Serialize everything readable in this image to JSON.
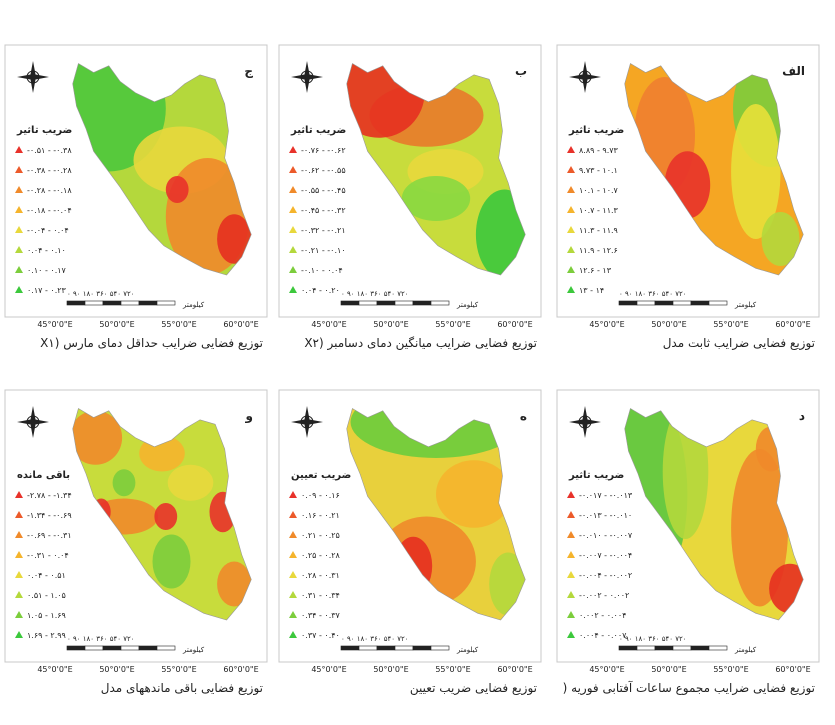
{
  "panels": [
    {
      "letter": "الف",
      "legend_title": "ضریب تاثیر",
      "legend_items": [
        "۸.۸۹ - ۹.۷۳",
        "۹.۷۳ - ۱۰.۱",
        "۱۰.۱ - ۱۰.۷",
        "۱۰.۷ - ۱۱.۳",
        "۱۱.۳ - ۱۱.۹",
        "۱۱.۹ - ۱۲.۶",
        "۱۲.۶ - ۱۳",
        "۱۳ - ۱۴"
      ],
      "caption": "توزیع فضایی ضرایب ثابت مدل",
      "longitudes": [
        "45°0'0\"E",
        "50°0'0\"E",
        "55°0'0\"E",
        "60°0'0\"E"
      ],
      "scale_labels": "۰ ۹۰ ۱۸۰ ۳۶۰ ۵۴۰ ۷۲۰",
      "scale_unit": "کیلومتر"
    },
    {
      "letter": "ب",
      "legend_title": "ضریب تاثیر",
      "legend_items": [
        "-۰.۷۶ - -۰.۶۲",
        "-۰.۶۲ - -۰.۵۵",
        "-۰.۵۵ - -۰.۴۵",
        "-۰.۴۵ - -۰.۳۲",
        "-۰.۳۲ - -۰.۲۱",
        "-۰.۲۱ - -۰.۱۰",
        "-۰.۱۰ - ۰.۰۴",
        "۰.۰۴ - ۰.۲۰"
      ],
      "caption": "توزیع فضایی ضرایب میانگین دمای دسامبر (X۲",
      "longitudes": [
        "45°0'0\"E",
        "50°0'0\"E",
        "55°0'0\"E",
        "60°0'0\"E"
      ],
      "scale_labels": "۰ ۹۰ ۱۸۰ ۳۶۰ ۵۴۰ ۷۲۰",
      "scale_unit": "کیلومتر"
    },
    {
      "letter": "ج",
      "legend_title": "ضریب تاثیر",
      "legend_items": [
        "-۰.۵۱ - -۰.۳۸",
        "-۰.۳۸ - -۰.۲۸",
        "-۰.۲۸ - -۰.۱۸",
        "-۰.۱۸ - -۰.۰۴",
        "-۰.۰۴ - ۰.۰۴",
        "۰.۰۴ - ۰.۱۰",
        "۰.۱۰ - ۰.۱۷",
        "۰.۱۷ - ۰.۲۳"
      ],
      "caption": "توزیع فضایی ضرایب حداقل دمای مارس (X۱",
      "longitudes": [
        "45°0'0\"E",
        "50°0'0\"E",
        "55°0'0\"E",
        "60°0'0\"E"
      ],
      "scale_labels": "۰ ۹۰ ۱۸۰ ۳۶۰ ۵۴۰ ۷۲۰",
      "scale_unit": "کیلومتر"
    },
    {
      "letter": "د",
      "legend_title": "ضریب تاثیر",
      "legend_items": [
        "-۰.۰۱۷ - -۰.۰۱۳",
        "-۰.۰۱۳ - -۰.۰۱۰",
        "-۰.۰۱۰ - -۰.۰۰۷",
        "-۰.۰۰۷ - -۰.۰۰۴",
        "-۰.۰۰۴ - -۰.۰۰۲",
        "-۰.۰۰۲ - ۰.۰۰۲",
        "۰.۰۰۲ - ۰.۰۰۴",
        "۰.۰۰۴ - ۰.۰۰۷"
      ],
      "caption": "توزیع فضایی ضرایب مجموع ساعات آفتابی فوریه (",
      "longitudes": [
        "45°0'0\"E",
        "50°0'0\"E",
        "55°0'0\"E",
        "60°0'0\"E"
      ],
      "scale_labels": "۰ ۹۰ ۱۸۰ ۳۶۰ ۵۴۰ ۷۲۰",
      "scale_unit": "کیلومتر"
    },
    {
      "letter": "ه",
      "legend_title": "ضریب تعیین",
      "legend_items": [
        "۰.۰۹ - ۰.۱۶",
        "۰.۱۶ - ۰.۲۱",
        "۰.۲۱ - ۰.۲۵",
        "۰.۲۵ - ۰.۲۸",
        "۰.۲۸ - ۰.۳۱",
        "۰.۳۱ - ۰.۳۴",
        "۰.۳۴ - ۰.۳۷",
        "۰.۳۷ - ۰.۴۰"
      ],
      "caption": "توزیع فضایی ضریب تعیین",
      "longitudes": [
        "45°0'0\"E",
        "50°0'0\"E",
        "55°0'0\"E",
        "60°0'0\"E"
      ],
      "scale_labels": "۰ ۹۰ ۱۸۰ ۳۶۰ ۵۴۰ ۷۲۰",
      "scale_unit": "کیلومتر"
    },
    {
      "letter": "و",
      "legend_title": "باقی مانده",
      "legend_items": [
        "-۲.۷۸ - -۱.۳۴",
        "-۱.۳۴ - -۰.۶۹",
        "-۰.۶۹ - -۰.۳۱",
        "-۰.۳۱ - ۰.۰۴",
        "۰.۰۴ - ۰.۵۱",
        "۰.۵۱ - ۱.۰۵",
        "۱.۰۵ - ۱.۶۹",
        "۱.۶۹ - ۲.۹۹"
      ],
      "caption": "توزیع فضایی باقی ماندههای مدل",
      "longitudes": [
        "45°0'0\"E",
        "50°0'0\"E",
        "55°0'0\"E",
        "60°0'0\"E"
      ],
      "scale_labels": "۰ ۹۰ ۱۸۰ ۳۶۰ ۵۴۰ ۷۲۰",
      "scale_unit": "کیلومتر"
    }
  ]
}
